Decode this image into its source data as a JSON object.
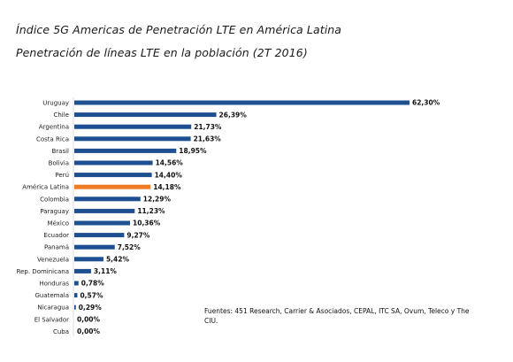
{
  "chart_data": {
    "type": "bar",
    "orientation": "horizontal",
    "title": "Índice 5G Americas de Penetración LTE en América Latina",
    "subtitle": "Penetración de líneas LTE en la población (2T 2016)",
    "xlabel": "",
    "ylabel": "",
    "xlim": [
      0,
      62.3
    ],
    "grid": false,
    "categories": [
      "Uruguay",
      "Chile",
      "Argentina",
      "Costa Rica",
      "Brasil",
      "Bolivia",
      "Perú",
      "América Latina",
      "Colombia",
      "Paraguay",
      "México",
      "Ecuador",
      "Panamá",
      "Venezuela",
      "Rep. Dominicana",
      "Honduras",
      "Guatemala",
      "Nicaragua",
      "El Salvador",
      "Cuba"
    ],
    "values": [
      62.3,
      26.39,
      21.73,
      21.63,
      18.95,
      14.56,
      14.4,
      14.18,
      12.29,
      11.23,
      10.36,
      9.27,
      7.52,
      5.42,
      3.11,
      0.78,
      0.57,
      0.29,
      0.0,
      0.0
    ],
    "value_labels": [
      "62,30%",
      "26,39%",
      "21,73%",
      "21,63%",
      "18,95%",
      "14,56%",
      "14,40%",
      "14,18%",
      "12,29%",
      "11,23%",
      "10,36%",
      "9,27%",
      "7,52%",
      "5,42%",
      "3,11%",
      "0,78%",
      "0,57%",
      "0,29%",
      "0,00%",
      "0,00%"
    ],
    "highlight_category": "América Latina",
    "colors": {
      "bar": "#1d4f91",
      "highlight": "#f07b26"
    },
    "source": "Fuentes: 451 Research,  Carrier & Asociados, CEPAL, ITC SA, Ovum, Teleco y The CIU."
  }
}
